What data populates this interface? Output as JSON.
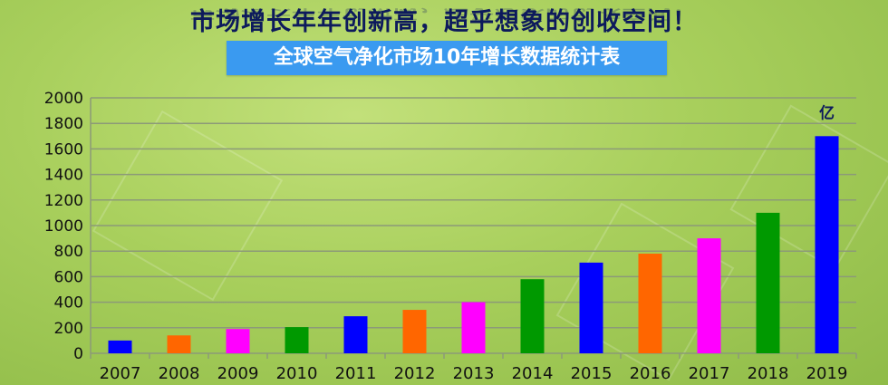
{
  "header": {
    "headline": "市场增长年年创新高，超乎想象的创收空间！",
    "banner": "全球空气净化市场10年增长数据统计表"
  },
  "chart_data": {
    "type": "bar",
    "title": "全球空气净化市场10年增长数据统计表",
    "categories": [
      "2007",
      "2008",
      "2009",
      "2010",
      "2011",
      "2012",
      "2013",
      "2014",
      "2015",
      "2016",
      "2017",
      "2018",
      "2019"
    ],
    "values": [
      100,
      140,
      190,
      205,
      290,
      340,
      400,
      580,
      710,
      780,
      900,
      1100,
      1700
    ],
    "colors": [
      "#0000ff",
      "#ff6600",
      "#ff00ff",
      "#009900",
      "#0000ff",
      "#ff6600",
      "#ff00ff",
      "#009900",
      "#0000ff",
      "#ff6600",
      "#ff00ff",
      "#009900",
      "#0000ff"
    ],
    "unit_label": "亿",
    "ylim": [
      0,
      2000
    ],
    "yticks": [
      0,
      200,
      400,
      600,
      800,
      1000,
      1200,
      1400,
      1600,
      1800,
      2000
    ],
    "grid": true,
    "legend": "none"
  }
}
